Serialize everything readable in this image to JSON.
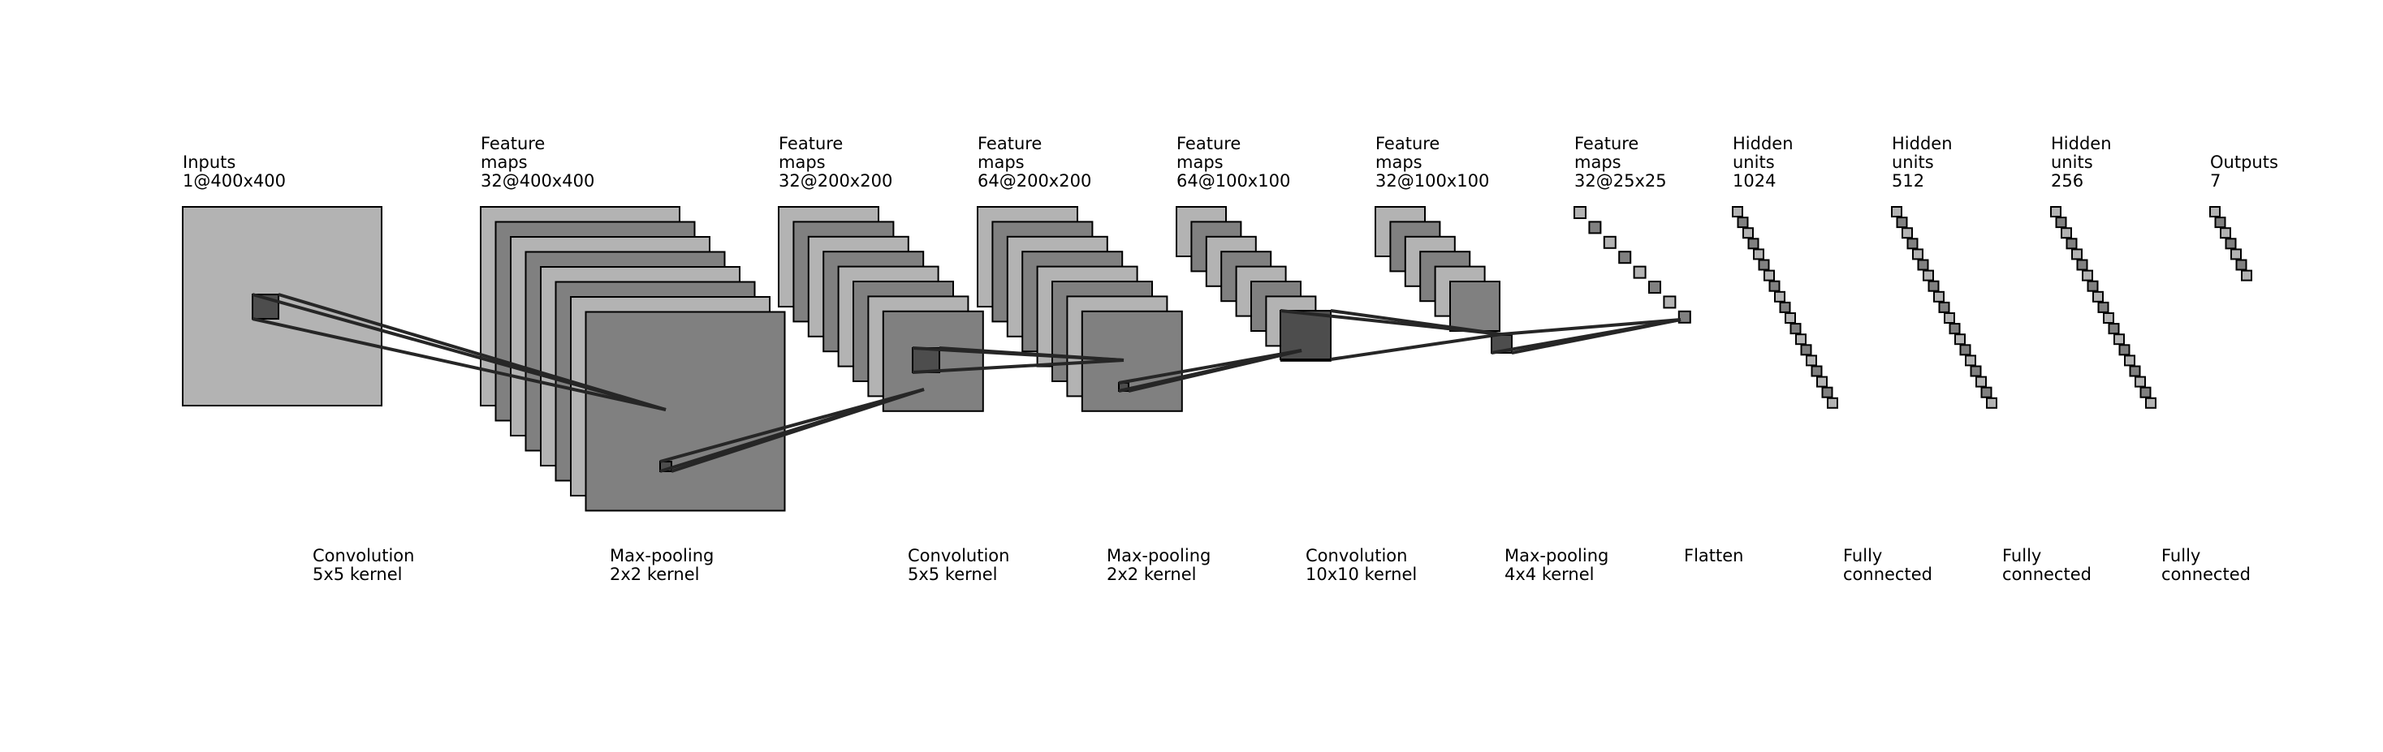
{
  "layers": [
    {
      "id": "input",
      "title": "Inputs",
      "dims": "1@400x400"
    },
    {
      "id": "conv1",
      "title": "Feature maps",
      "dims": "32@400x400"
    },
    {
      "id": "pool1",
      "title": "Feature maps",
      "dims": "32@200x200"
    },
    {
      "id": "conv2",
      "title": "Feature maps",
      "dims": "64@200x200"
    },
    {
      "id": "pool2",
      "title": "Feature maps",
      "dims": "64@100x100"
    },
    {
      "id": "conv3",
      "title": "Feature maps",
      "dims": "32@100x100"
    },
    {
      "id": "pool3",
      "title": "Feature maps",
      "dims": "32@25x25"
    },
    {
      "id": "fc1",
      "title": "Hidden units",
      "dims": "1024"
    },
    {
      "id": "fc2",
      "title": "Hidden units",
      "dims": "512"
    },
    {
      "id": "fc3",
      "title": "Hidden units",
      "dims": "256"
    },
    {
      "id": "output",
      "title": "Outputs",
      "dims": "7"
    }
  ],
  "operations": [
    {
      "name": "Convolution",
      "detail": "5x5 kernel"
    },
    {
      "name": "Max-pooling",
      "detail": "2x2 kernel"
    },
    {
      "name": "Convolution",
      "detail": "5x5 kernel"
    },
    {
      "name": "Max-pooling",
      "detail": "2x2 kernel"
    },
    {
      "name": "Convolution",
      "detail": "10x10 kernel"
    },
    {
      "name": "Max-pooling",
      "detail": "4x4 kernel"
    },
    {
      "name": "Flatten",
      "detail": ""
    },
    {
      "name": "Fully",
      "detail": "connected"
    },
    {
      "name": "Fully",
      "detail": "connected"
    },
    {
      "name": "Fully",
      "detail": "connected"
    }
  ],
  "colors": {
    "map_light": "#b3b3b3",
    "map_dark": "#808080",
    "patch": "#4d4d4d",
    "connection": "#262626"
  }
}
